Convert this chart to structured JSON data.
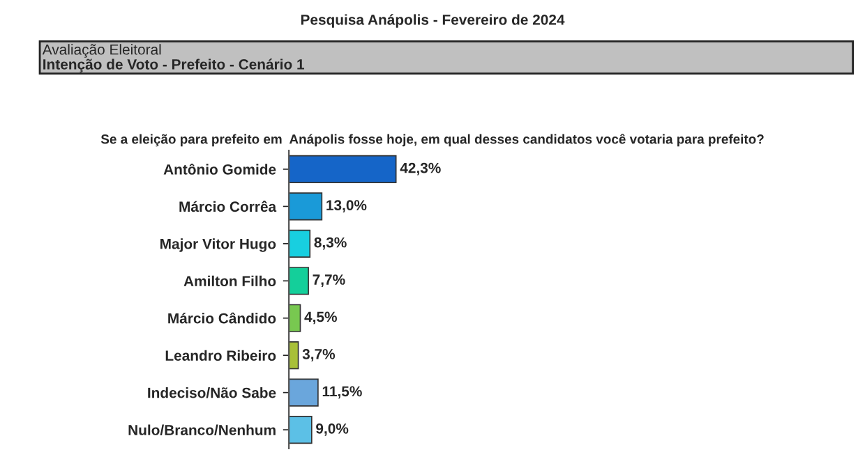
{
  "chart_data": {
    "type": "bar",
    "orientation": "horizontal",
    "title": "Pesquisa Anápolis - Fevereiro de 2024",
    "subtitle": "Avaliação Eleitoral",
    "annotations": [
      "Intenção de Voto - Prefeito - Cenário 1",
      "Se a eleição para prefeito em  Anápolis fosse hoje, em qual desses candidatos você votaria para prefeito?"
    ],
    "categories": [
      "Antônio Gomide",
      "Márcio Corrêa",
      "Major Vitor Hugo",
      "Amilton Filho",
      "Márcio Cândido",
      "Leandro Ribeiro",
      "Indeciso/Não Sabe",
      "Nulo/Branco/Nenhum"
    ],
    "values": [
      42.3,
      13.0,
      8.3,
      7.7,
      4.5,
      3.7,
      11.5,
      9.0
    ],
    "value_labels": [
      "42,3%",
      "13,0%",
      "8,3%",
      "7,7%",
      "4,5%",
      "3,7%",
      "11,5%",
      "9,0%"
    ],
    "colors": [
      "#1565c8",
      "#1a9ad8",
      "#18cfe0",
      "#14cf9a",
      "#78c850",
      "#a8c038",
      "#6aa6dc",
      "#5cc0e6"
    ],
    "tick_labels": "y",
    "grid": false,
    "legend": false
  }
}
